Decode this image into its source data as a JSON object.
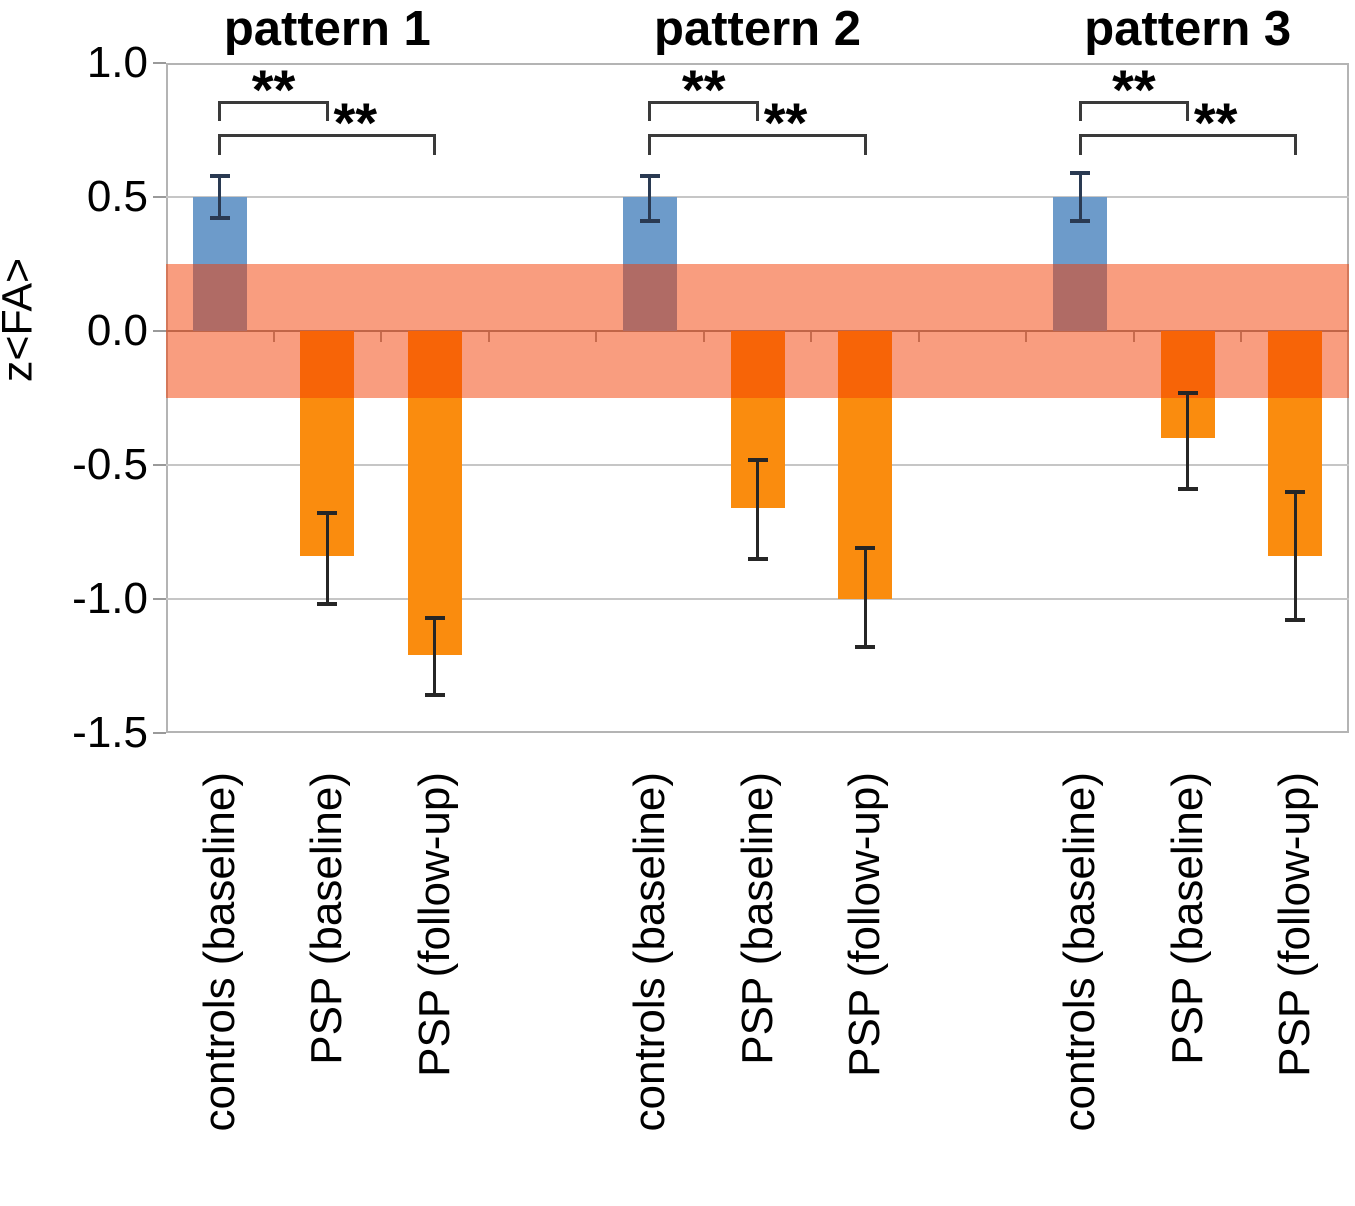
{
  "chart_data": {
    "type": "bar",
    "title": "",
    "ylabel": "z<FA>",
    "ylim": [
      -1.5,
      1.0
    ],
    "yticks": [
      1.0,
      0.5,
      0.0,
      -0.5,
      -1.0,
      -1.5
    ],
    "ytick_labels": [
      "1.0",
      "0.5",
      "0.0",
      "-0.5",
      "-1.0",
      "-1.5"
    ],
    "grid": "horizontal-gridlines-on",
    "legend_position": "none",
    "categories": [
      "controls (baseline)",
      "PSP (baseline)",
      "PSP (follow-up)"
    ],
    "highlight_band": {
      "ymin": -0.25,
      "ymax": 0.25,
      "color": "rgba(243,60,0,0.5)"
    },
    "groups": [
      {
        "title": "pattern 1",
        "bars": [
          {
            "label": "controls (baseline)",
            "series": "controls",
            "value": 0.5,
            "err_hi": 0.58,
            "err_lo": 0.42
          },
          {
            "label": "PSP (baseline)",
            "series": "PSP",
            "value": -0.84,
            "err_hi": -0.68,
            "err_lo": -1.02
          },
          {
            "label": "PSP (follow-up)",
            "series": "PSP",
            "value": -1.21,
            "err_hi": -1.07,
            "err_lo": -1.36
          }
        ],
        "significance": [
          {
            "pair": [
              0,
              1
            ],
            "label": "**"
          },
          {
            "pair": [
              0,
              2
            ],
            "label": "**"
          }
        ]
      },
      {
        "title": "pattern 2",
        "bars": [
          {
            "label": "controls (baseline)",
            "series": "controls",
            "value": 0.5,
            "err_hi": 0.58,
            "err_lo": 0.41
          },
          {
            "label": "PSP (baseline)",
            "series": "PSP",
            "value": -0.66,
            "err_hi": -0.48,
            "err_lo": -0.85
          },
          {
            "label": "PSP (follow-up)",
            "series": "PSP",
            "value": -1.0,
            "err_hi": -0.81,
            "err_lo": -1.18
          }
        ],
        "significance": [
          {
            "pair": [
              0,
              1
            ],
            "label": "**"
          },
          {
            "pair": [
              0,
              2
            ],
            "label": "**"
          }
        ]
      },
      {
        "title": "pattern 3",
        "bars": [
          {
            "label": "controls (baseline)",
            "series": "controls",
            "value": 0.5,
            "err_hi": 0.59,
            "err_lo": 0.41
          },
          {
            "label": "PSP (baseline)",
            "series": "PSP",
            "value": -0.4,
            "err_hi": -0.23,
            "err_lo": -0.59
          },
          {
            "label": "PSP (follow-up)",
            "series": "PSP",
            "value": -0.84,
            "err_hi": -0.6,
            "err_lo": -1.08
          }
        ],
        "significance": [
          {
            "pair": [
              0,
              1
            ],
            "label": "**"
          },
          {
            "pair": [
              0,
              2
            ],
            "label": "**"
          }
        ]
      }
    ],
    "colors": {
      "controls_bar": "#6D9BCA",
      "psp_bar": "#FA8C0E",
      "band": "rgba(243,60,0,0.5)",
      "gridline": "#c6c6c6",
      "zero_line": "#8f8f8f",
      "plot_border": "#b4b4b4",
      "tick": "#9a9a9a",
      "error_bar": "#262626",
      "error_bar_controls": "#2a3a52",
      "bracket": "#3a3a3a"
    }
  }
}
